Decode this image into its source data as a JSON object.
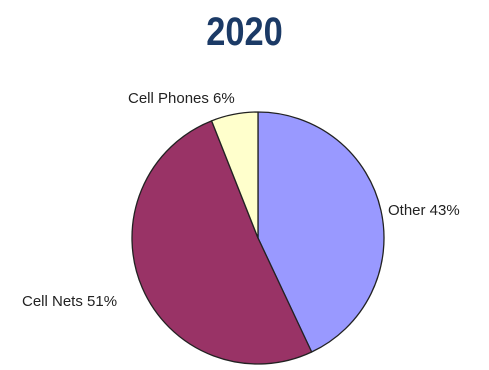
{
  "chart_data": {
    "type": "pie",
    "title": "2020",
    "slices": [
      {
        "label": "Other",
        "value": 43,
        "display": "Other 43%",
        "color": "#9999ff"
      },
      {
        "label": "Cell Nets",
        "value": 51,
        "display": "Cell Nets 51%",
        "color": "#993366"
      },
      {
        "label": "Cell Phones",
        "value": 6,
        "display": "Cell Phones 6%",
        "color": "#ffffcc"
      }
    ],
    "legend": "none",
    "start": "12 o'clock",
    "direction": "clockwise"
  }
}
